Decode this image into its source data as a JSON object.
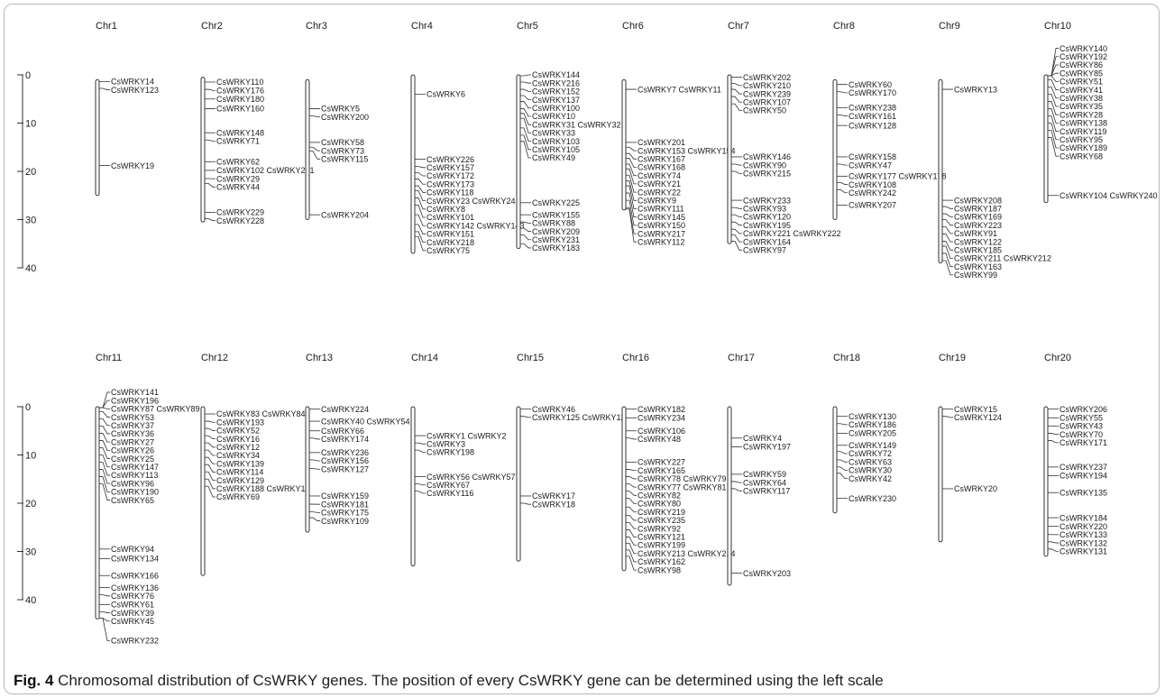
{
  "figure": {
    "caption_label": "Fig. 4",
    "caption_text": "Chromosomal distribution of CsWRKY genes. The position of every CsWRKY gene can be determined using the left scale"
  },
  "scale": {
    "ticks": [
      0,
      10,
      20,
      30,
      40
    ],
    "unit": ""
  },
  "chromosomes": [
    {
      "name": "Chr1",
      "start": 1,
      "end": 25,
      "genes": [
        [
          "CsWRKY14",
          1.4
        ],
        [
          "CsWRKY123",
          2.8
        ],
        [
          "CsWRKY19",
          18.8
        ]
      ]
    },
    {
      "name": "Chr2",
      "start": 0.5,
      "end": 30.5,
      "genes": [
        [
          "CsWRKY110",
          1.5
        ],
        [
          "CsWRKY176",
          3
        ],
        [
          "CsWRKY180",
          5
        ],
        [
          "CsWRKY160",
          7
        ],
        [
          "CsWRKY148",
          12
        ],
        [
          "CsWRKY71",
          13.5
        ],
        [
          "CsWRKY62",
          18
        ],
        [
          "CsWRKY102 CsWRKY241",
          19.8
        ],
        [
          "CsWRKY29",
          21.5
        ],
        [
          "CsWRKY44",
          22.5
        ],
        [
          "CsWRKY229",
          28.5
        ],
        [
          "CsWRKY228",
          29.8
        ]
      ]
    },
    {
      "name": "Chr3",
      "start": 1,
      "end": 30,
      "genes": [
        [
          "CsWRKY5",
          7
        ],
        [
          "CsWRKY200",
          8.5
        ],
        [
          "CsWRKY58",
          14
        ],
        [
          "CsWRKY73",
          15
        ],
        [
          "CsWRKY115",
          15.8
        ],
        [
          "CsWRKY204",
          29
        ]
      ]
    },
    {
      "name": "Chr4",
      "start": 0,
      "end": 37,
      "genes": [
        [
          "CsWRKY6",
          4
        ],
        [
          "CsWRKY226",
          17.5
        ],
        [
          "CsWRKY157",
          19
        ],
        [
          "CsWRKY172",
          20.3
        ],
        [
          "CsWRKY173",
          21.6
        ],
        [
          "CsWRKY118",
          23
        ],
        [
          "CsWRKY23 CsWRKY24",
          24
        ],
        [
          "CsWRKY8",
          25.5
        ],
        [
          "CsWRKY101",
          27
        ],
        [
          "CsWRKY142 CsWRKY143",
          29
        ],
        [
          "CsWRKY151",
          31
        ],
        [
          "CsWRKY218",
          32.5
        ],
        [
          "CsWRKY75",
          33.5
        ]
      ]
    },
    {
      "name": "Chr5",
      "start": 0,
      "end": 36,
      "genes": [
        [
          "CsWRKY144",
          0
        ],
        [
          "CsWRKY216",
          1.5
        ],
        [
          "CsWRKY152",
          3
        ],
        [
          "CsWRKY137",
          4.3
        ],
        [
          "CsWRKY100",
          5.5
        ],
        [
          "CsWRKY10",
          7
        ],
        [
          "CsWRKY31 CsWRKY32",
          8
        ],
        [
          "CsWRKY33",
          9
        ],
        [
          "CsWRKY103",
          11
        ],
        [
          "CsWRKY105",
          12.5
        ],
        [
          "CsWRKY49",
          13.8
        ],
        [
          "CsWRKY225",
          26.5
        ],
        [
          "CsWRKY155",
          29
        ],
        [
          "CsWRKY88",
          30.5
        ],
        [
          "CsWRKY209",
          31.8
        ],
        [
          "CsWRKY231",
          33.2
        ],
        [
          "CsWRKY183",
          35
        ]
      ]
    },
    {
      "name": "Chr6",
      "start": 1,
      "end": 28,
      "genes": [
        [
          "CsWRKY7 CsWRKY11",
          3
        ],
        [
          "CsWRKY201",
          14
        ],
        [
          "CsWRKY153 CsWRKY154",
          15
        ],
        [
          "CsWRKY167",
          16.3
        ],
        [
          "CsWRKY168",
          17.3
        ],
        [
          "CsWRKY74",
          18.5
        ],
        [
          "CsWRKY21",
          19.5
        ],
        [
          "CsWRKY22",
          20.8
        ],
        [
          "CsWRKY9",
          22
        ],
        [
          "CsWRKY111",
          23
        ],
        [
          "CsWRKY145",
          24.5
        ],
        [
          "CsWRKY150",
          26
        ],
        [
          "CsWRKY217",
          27.5
        ],
        [
          "CsWRKY112",
          28.8
        ]
      ]
    },
    {
      "name": "Chr7",
      "start": 0,
      "end": 35,
      "genes": [
        [
          "CsWRKY202",
          0.5
        ],
        [
          "CsWRKY210",
          1.8
        ],
        [
          "CsWRKY239",
          3
        ],
        [
          "CsWRKY107",
          4.5
        ],
        [
          "CsWRKY50",
          6
        ],
        [
          "CsWRKY146",
          17
        ],
        [
          "CsWRKY90",
          18.5
        ],
        [
          "CsWRKY215",
          20
        ],
        [
          "CsWRKY233",
          26
        ],
        [
          "CsWRKY93",
          27.5
        ],
        [
          "CsWRKY120",
          29
        ],
        [
          "CsWRKY195",
          30.5
        ],
        [
          "CsWRKY221 CsWRKY222",
          32
        ],
        [
          "CsWRKY164",
          33.2
        ],
        [
          "CsWRKY97",
          34.5
        ]
      ]
    },
    {
      "name": "Chr8",
      "start": 1,
      "end": 30,
      "genes": [
        [
          "CsWRKY60",
          2
        ],
        [
          "CsWRKY170",
          3.5
        ],
        [
          "CsWRKY238",
          6.8
        ],
        [
          "CsWRKY161",
          8.3
        ],
        [
          "CsWRKY128",
          10.5
        ],
        [
          "CsWRKY158",
          17
        ],
        [
          "CsWRKY47",
          18.5
        ],
        [
          "CsWRKY177 CsWRKY178",
          21
        ],
        [
          "CsWRKY108",
          22.3
        ],
        [
          "CsWRKY242",
          23.8
        ],
        [
          "CsWRKY207",
          27
        ]
      ]
    },
    {
      "name": "Chr9",
      "start": 1,
      "end": 39,
      "genes": [
        [
          "CsWRKY13",
          3
        ],
        [
          "CsWRKY208",
          26
        ],
        [
          "CsWRKY187",
          27.3
        ],
        [
          "CsWRKY169",
          28.8
        ],
        [
          "CsWRKY223",
          30
        ],
        [
          "CsWRKY91",
          31.5
        ],
        [
          "CsWRKY122",
          33
        ],
        [
          "CsWRKY185",
          34.5
        ],
        [
          "CsWRKY211 CsWRKY212",
          35.5
        ],
        [
          "CsWRKY163",
          37
        ],
        [
          "CsWRKY99",
          38.5
        ]
      ]
    },
    {
      "name": "Chr10",
      "start": 0,
      "end": 26.5,
      "genes": [
        [
          "CsWRKY140",
          -5.5
        ],
        [
          "CsWRKY192",
          -4.3
        ],
        [
          "CsWRKY86",
          -3
        ],
        [
          "CsWRKY85",
          -1.5
        ],
        [
          "CsWRKY51",
          -0.3
        ],
        [
          "CsWRKY41",
          1
        ],
        [
          "CsWRKY38",
          2.5
        ],
        [
          "CsWRKY35",
          4
        ],
        [
          "CsWRKY28",
          5.5
        ],
        [
          "CsWRKY138",
          7
        ],
        [
          "CsWRKY119",
          8.5
        ],
        [
          "CsWRKY95",
          10
        ],
        [
          "CsWRKY189",
          11.5
        ],
        [
          "CsWRKY68",
          13
        ],
        [
          "CsWRKY104 CsWRKY240",
          25
        ]
      ]
    },
    {
      "name": "Chr11",
      "start": 0,
      "end": 44,
      "genes": [
        [
          "CsWRKY141",
          -3
        ],
        [
          "CsWRKY196",
          -1.7
        ],
        [
          "CsWRKY87 CsWRKY89",
          -0.3
        ],
        [
          "CsWRKY53",
          1
        ],
        [
          "CsWRKY37",
          2.5
        ],
        [
          "CsWRKY36",
          4
        ],
        [
          "CsWRKY27",
          5.5
        ],
        [
          "CsWRKY26",
          7
        ],
        [
          "CsWRKY25",
          8.5
        ],
        [
          "CsWRKY147",
          10
        ],
        [
          "CsWRKY113",
          11.5
        ],
        [
          "CsWRKY96",
          13
        ],
        [
          "CsWRKY190",
          14.5
        ],
        [
          "CsWRKY65",
          16
        ],
        [
          "CsWRKY94",
          29.5
        ],
        [
          "CsWRKY134",
          31.5
        ],
        [
          "CsWRKY166",
          35
        ],
        [
          "CsWRKY136",
          37.5
        ],
        [
          "CsWRKY76",
          39
        ],
        [
          "CsWRKY61",
          41
        ],
        [
          "CsWRKY39",
          42.5
        ],
        [
          "CsWRKY45",
          44
        ],
        [
          "CsWRKY232",
          48.5
        ]
      ]
    },
    {
      "name": "Chr12",
      "start": 0,
      "end": 35,
      "genes": [
        [
          "CsWRKY83 CsWRKY84",
          1.5
        ],
        [
          "CsWRKY193",
          3
        ],
        [
          "CsWRKY52",
          4.5
        ],
        [
          "CsWRKY16",
          6
        ],
        [
          "CsWRKY12",
          7.5
        ],
        [
          "CsWRKY34",
          9
        ],
        [
          "CsWRKY139",
          10.5
        ],
        [
          "CsWRKY114",
          12
        ],
        [
          "CsWRKY129",
          13.5
        ],
        [
          "CsWRKY188 CsWRKY19",
          15
        ],
        [
          "CsWRKY69",
          16.5
        ]
      ]
    },
    {
      "name": "Chr13",
      "start": 0,
      "end": 26,
      "genes": [
        [
          "CsWRKY224",
          0.5
        ],
        [
          "CsWRKY40 CsWRKY54",
          3
        ],
        [
          "CsWRKY66",
          5
        ],
        [
          "CsWRKY174",
          6.5
        ],
        [
          "CsWRKY236",
          9.5
        ],
        [
          "CsWRKY156",
          11
        ],
        [
          "CsWRKY127",
          12.8
        ],
        [
          "CsWRKY159",
          18.5
        ],
        [
          "CsWRKY181",
          20.2
        ],
        [
          "CsWRKY175",
          21.8
        ],
        [
          "CsWRKY109",
          23
        ]
      ]
    },
    {
      "name": "Chr14",
      "start": 0,
      "end": 33,
      "genes": [
        [
          "CsWRKY1 CsWRKY2",
          6
        ],
        [
          "CsWRKY3",
          7.5
        ],
        [
          "CsWRKY198",
          9
        ],
        [
          "CsWRKY56 CsWRKY57",
          14.5
        ],
        [
          "CsWRKY67",
          16
        ],
        [
          "CsWRKY116",
          17.5
        ]
      ]
    },
    {
      "name": "Chr15",
      "start": 0,
      "end": 32,
      "genes": [
        [
          "CsWRKY46",
          0.5
        ],
        [
          "CsWRKY125 CsWRKY12",
          2
        ],
        [
          "CsWRKY17",
          18.5
        ],
        [
          "CsWRKY18",
          20
        ]
      ]
    },
    {
      "name": "Chr16",
      "start": 0,
      "end": 34,
      "genes": [
        [
          "CsWRKY182",
          0.5
        ],
        [
          "CsWRKY234",
          2.3
        ],
        [
          "CsWRKY106",
          5
        ],
        [
          "CsWRKY48",
          6.5
        ],
        [
          "CsWRKY227",
          11.5
        ],
        [
          "CsWRKY165",
          13
        ],
        [
          "CsWRKY78 CsWRKY79",
          14.5
        ],
        [
          "CsWRKY77 CsWRKY81",
          16
        ],
        [
          "CsWRKY82",
          17.5
        ],
        [
          "CsWRKY80",
          19
        ],
        [
          "CsWRKY219",
          20.8
        ],
        [
          "CsWRKY235",
          22.5
        ],
        [
          "CsWRKY92",
          24
        ],
        [
          "CsWRKY121",
          25.5
        ],
        [
          "CsWRKY199",
          27
        ],
        [
          "CsWRKY213 CsWRKY214",
          28.3
        ],
        [
          "CsWRKY162",
          29.7
        ],
        [
          "CsWRKY98",
          31
        ]
      ]
    },
    {
      "name": "Chr17",
      "start": 0,
      "end": 37,
      "genes": [
        [
          "CsWRKY4",
          6.5
        ],
        [
          "CsWRKY197",
          8.3
        ],
        [
          "CsWRKY59",
          14
        ],
        [
          "CsWRKY64",
          15.5
        ],
        [
          "CsWRKY117",
          17
        ],
        [
          "CsWRKY203",
          34.5
        ]
      ]
    },
    {
      "name": "Chr18",
      "start": 0,
      "end": 22,
      "genes": [
        [
          "CsWRKY130",
          2
        ],
        [
          "CsWRKY186",
          3.5
        ],
        [
          "CsWRKY205",
          5.5
        ],
        [
          "CsWRKY149",
          8
        ],
        [
          "CsWRKY72",
          9.3
        ],
        [
          "CsWRKY63",
          11
        ],
        [
          "CsWRKY30",
          12.5
        ],
        [
          "CsWRKY42",
          13.8
        ],
        [
          "CsWRKY230",
          19
        ]
      ]
    },
    {
      "name": "Chr19",
      "start": 0,
      "end": 28,
      "genes": [
        [
          "CsWRKY15",
          0.5
        ],
        [
          "CsWRKY124",
          2
        ],
        [
          "CsWRKY20",
          17
        ]
      ]
    },
    {
      "name": "Chr20",
      "start": 0,
      "end": 31,
      "genes": [
        [
          "CsWRKY206",
          0.5
        ],
        [
          "CsWRKY55",
          2.3
        ],
        [
          "CsWRKY43",
          4
        ],
        [
          "CsWRKY70",
          5.5
        ],
        [
          "CsWRKY171",
          7
        ],
        [
          "CsWRKY237",
          12.5
        ],
        [
          "CsWRKY194",
          14.3
        ],
        [
          "CsWRKY135",
          17.8
        ],
        [
          "CsWRKY184",
          23
        ],
        [
          "CsWRKY220",
          24.8
        ],
        [
          "CsWRKY133",
          26.5
        ],
        [
          "CsWRKY132",
          28
        ],
        [
          "CsWRKY131",
          29.5
        ]
      ]
    }
  ]
}
